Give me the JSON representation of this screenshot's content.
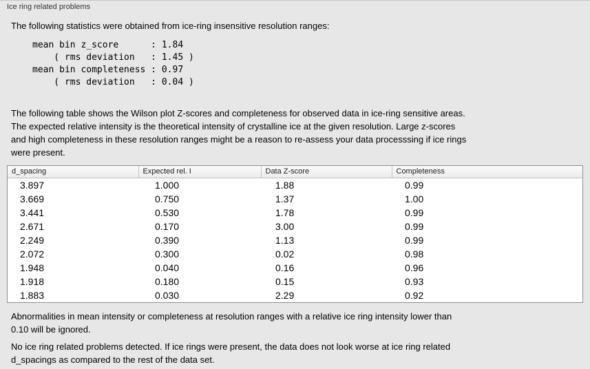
{
  "panel": {
    "title": "Ice ring related problems"
  },
  "intro": "The following statistics were obtained from ice-ring insensitive resolution ranges:",
  "stats_lines": [
    "mean bin z_score      : 1.84",
    "    ( rms deviation   : 1.45 )",
    "mean bin completeness : 0.97",
    "    ( rms deviation   : 0.04 )"
  ],
  "table_description": "The following table shows the Wilson plot Z-scores and completeness for observed data in ice-ring sensitive areas.\nThe expected relative intensity is the theoretical intensity of crystalline ice at the given resolution. Large z-scores\nand high completeness in these resolution ranges might be a reason to re-assess your data processsing if ice rings\nwere present.",
  "table": {
    "headers": [
      "d_spacing",
      "Expected rel. I",
      "Data Z-score",
      "Completeness"
    ],
    "rows": [
      [
        "3.897",
        "1.000",
        "1.88",
        "0.99"
      ],
      [
        "3.669",
        "0.750",
        "1.37",
        "1.00"
      ],
      [
        "3.441",
        "0.530",
        "1.78",
        "0.99"
      ],
      [
        "2.671",
        "0.170",
        "3.00",
        "0.99"
      ],
      [
        "2.249",
        "0.390",
        "1.13",
        "0.99"
      ],
      [
        "2.072",
        "0.300",
        "0.02",
        "0.98"
      ],
      [
        "1.948",
        "0.040",
        "0.16",
        "0.96"
      ],
      [
        "1.918",
        "0.180",
        "0.15",
        "0.93"
      ],
      [
        "1.883",
        "0.030",
        "2.29",
        "0.92"
      ]
    ]
  },
  "note": "Abnormalities in mean intensity or completeness at resolution ranges with a relative ice ring intensity lower than\n0.10 will be ignored.",
  "conclusion": "No ice ring related problems detected. If ice rings were present, the data does not look worse at ice ring related\nd_spacings as compared to the rest of the data set."
}
